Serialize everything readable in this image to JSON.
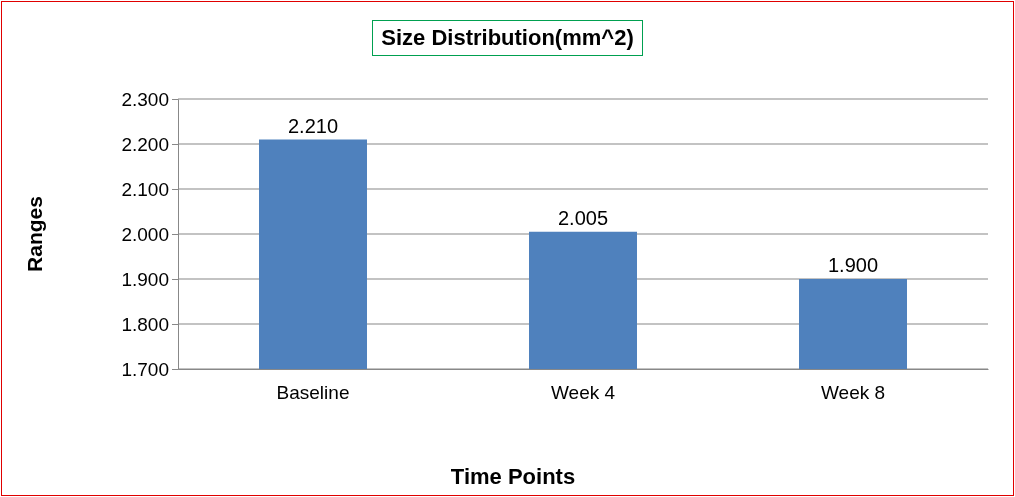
{
  "chart_data": {
    "type": "bar",
    "title": "Size Distribution(mm^2)",
    "xlabel": "Time Points",
    "ylabel": "Ranges",
    "categories": [
      "Baseline",
      "Week 4",
      "Week 8"
    ],
    "values": [
      2.21,
      2.005,
      1.9
    ],
    "value_labels": [
      "2.210",
      "2.005",
      "1.900"
    ],
    "color": "#4f81bd",
    "ylim": [
      1.7,
      2.3
    ],
    "yticks": [
      {
        "value": 1.7,
        "label": "1.700"
      },
      {
        "value": 1.8,
        "label": "1.800"
      },
      {
        "value": 1.9,
        "label": "1.900"
      },
      {
        "value": 2.0,
        "label": "2.000"
      },
      {
        "value": 2.1,
        "label": "2.100"
      },
      {
        "value": 2.2,
        "label": "2.200"
      },
      {
        "value": 2.3,
        "label": "2.300"
      }
    ],
    "grid": "y"
  }
}
